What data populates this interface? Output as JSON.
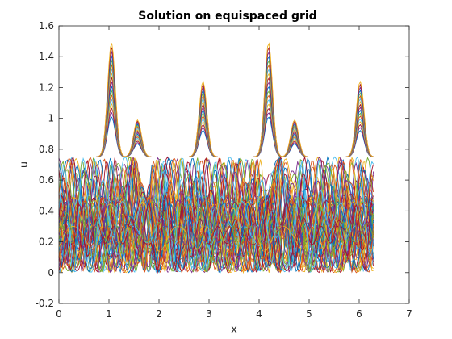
{
  "chart_data": {
    "type": "line",
    "title": "Solution on equispaced grid",
    "xlabel": "x",
    "ylabel": "u",
    "xlim": [
      0,
      7
    ],
    "ylim": [
      -0.2,
      1.6
    ],
    "xticks": [
      0,
      1,
      2,
      3,
      4,
      5,
      6,
      7
    ],
    "yticks": [
      -0.2,
      0,
      0.2,
      0.4,
      0.6,
      0.8,
      1,
      1.2,
      1.4,
      1.6
    ],
    "grid": false,
    "legend": "none",
    "x_range_data": [
      0,
      6.2832
    ],
    "background_levels": [
      0.75,
      0.5
    ],
    "peaks": [
      {
        "x": 1.05,
        "u": 1.49
      },
      {
        "x": 1.57,
        "u": 0.99
      },
      {
        "x": 2.88,
        "u": 1.24
      },
      {
        "x": 4.19,
        "u": 1.49
      },
      {
        "x": 4.71,
        "u": 0.99
      },
      {
        "x": 6.02,
        "u": 1.24
      }
    ],
    "series_colors": [
      "#0072bd",
      "#d95319",
      "#edb120",
      "#7e2f8e",
      "#77ac30",
      "#4dbeee",
      "#a2142f"
    ]
  }
}
